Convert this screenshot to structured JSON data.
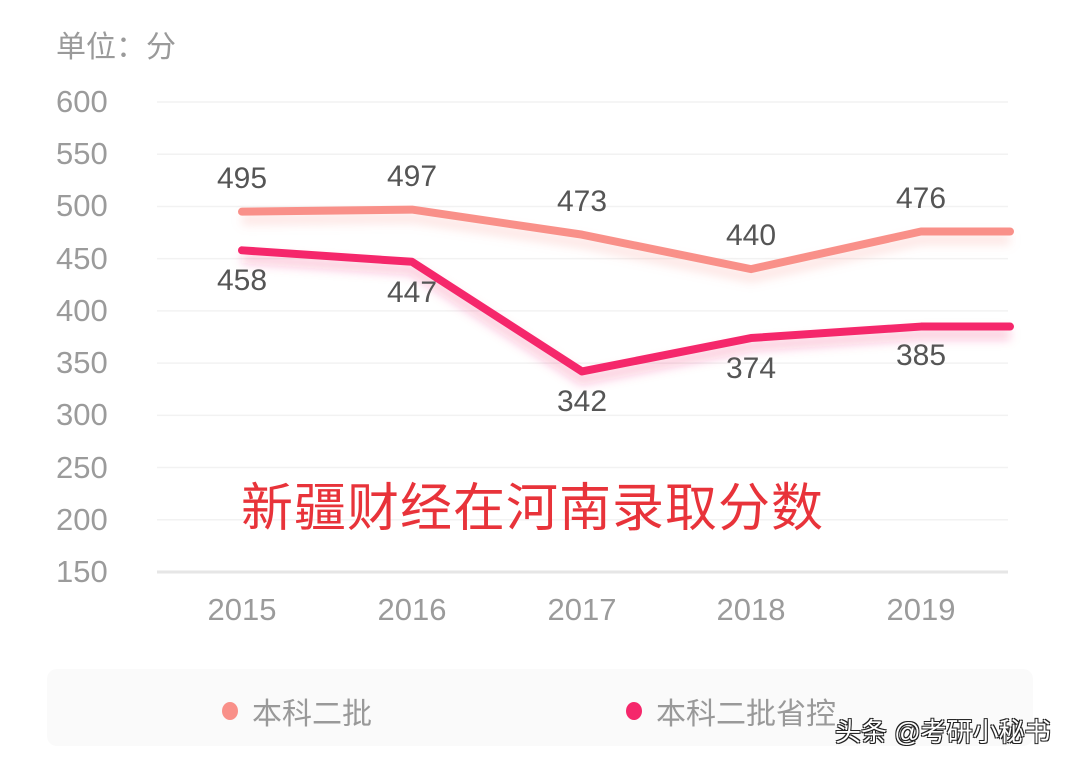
{
  "unit_label": "单位：分",
  "overlay_title": "新疆财经在河南录取分数",
  "watermark": "头条 @考研小秘书",
  "colors": {
    "series1": "#f99089",
    "series2": "#f5276b",
    "grid": "#f2f2f2",
    "axis": "#e6e6e6",
    "title": "#e8333a"
  },
  "legend": [
    {
      "label": "本科二批",
      "color": "#f99089"
    },
    {
      "label": "本科二批省控",
      "color": "#f5276b"
    }
  ],
  "chart_data": {
    "type": "line",
    "title": "新疆财经在河南录取分数",
    "xlabel": "",
    "ylabel": "单位：分",
    "categories": [
      "2015",
      "2016",
      "2017",
      "2018",
      "2019"
    ],
    "y_ticks": [
      "600",
      "550",
      "500",
      "450",
      "400",
      "350",
      "300",
      "250",
      "200",
      "150"
    ],
    "ylim": [
      150,
      600
    ],
    "grid": true,
    "legend_position": "bottom",
    "series": [
      {
        "name": "本科二批",
        "values": [
          495,
          497,
          473,
          440,
          476
        ]
      },
      {
        "name": "本科二批省控",
        "values": [
          458,
          447,
          342,
          374,
          385
        ]
      }
    ]
  }
}
